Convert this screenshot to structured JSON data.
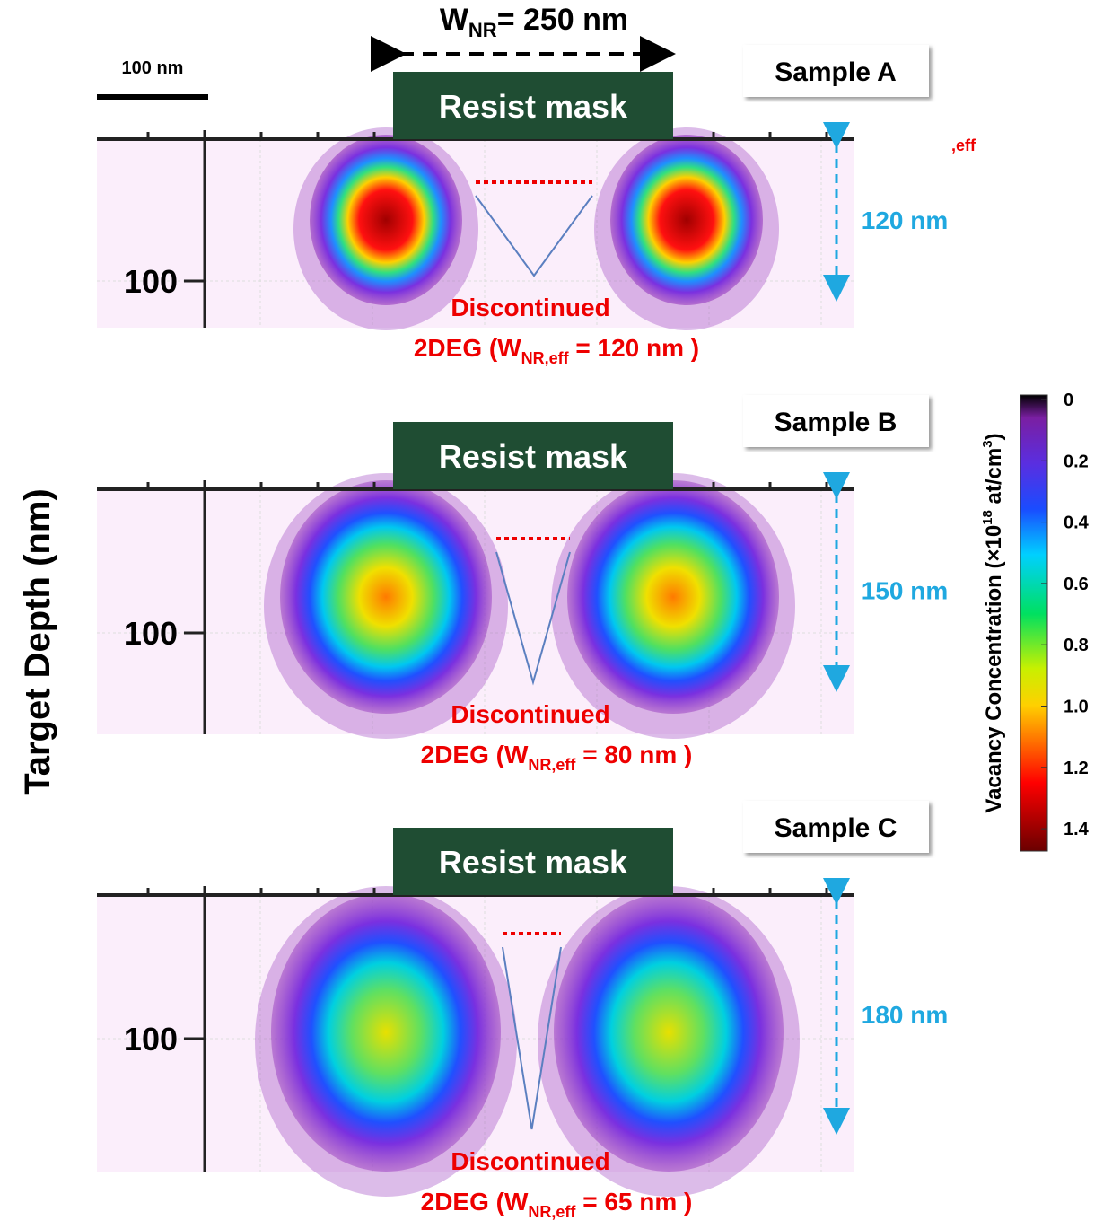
{
  "scale_bar": "100 nm",
  "width_label": {
    "main": "W",
    "sub": "NR",
    "rest": "= 250 nm"
  },
  "stray_label": ",eff",
  "y_axis_label": "Target Depth (nm)",
  "panels": [
    {
      "sample": "Sample A",
      "mask": "Resist mask",
      "y_tick": "100",
      "depth": "120 nm",
      "note_line1": "Discontinued",
      "note_line2": {
        "pre": "2DEG (W",
        "sub": "NR,eff",
        "post": " = 120 nm )"
      }
    },
    {
      "sample": "Sample B",
      "mask": "Resist mask",
      "y_tick": "100",
      "depth": "150 nm",
      "note_line1": "Discontinued",
      "note_line2": {
        "pre": "2DEG (W",
        "sub": "NR,eff",
        "post": " = 80 nm )"
      }
    },
    {
      "sample": "Sample C",
      "mask": "Resist mask",
      "y_tick": "100",
      "depth": "180 nm",
      "note_line1": "Discontinued",
      "note_line2": {
        "pre": "2DEG (W",
        "sub": "NR,eff",
        "post": " = 65 nm )"
      }
    }
  ],
  "colorbar": {
    "title": {
      "pre": "Vacancy Concentration (×10",
      "sup1": "18",
      "mid": " at/cm",
      "sup2": "3",
      "post": ")"
    },
    "ticks": [
      "0",
      "0.2",
      "0.4",
      "0.6",
      "0.8",
      "1.0",
      "1.2",
      "1.4"
    ]
  }
}
